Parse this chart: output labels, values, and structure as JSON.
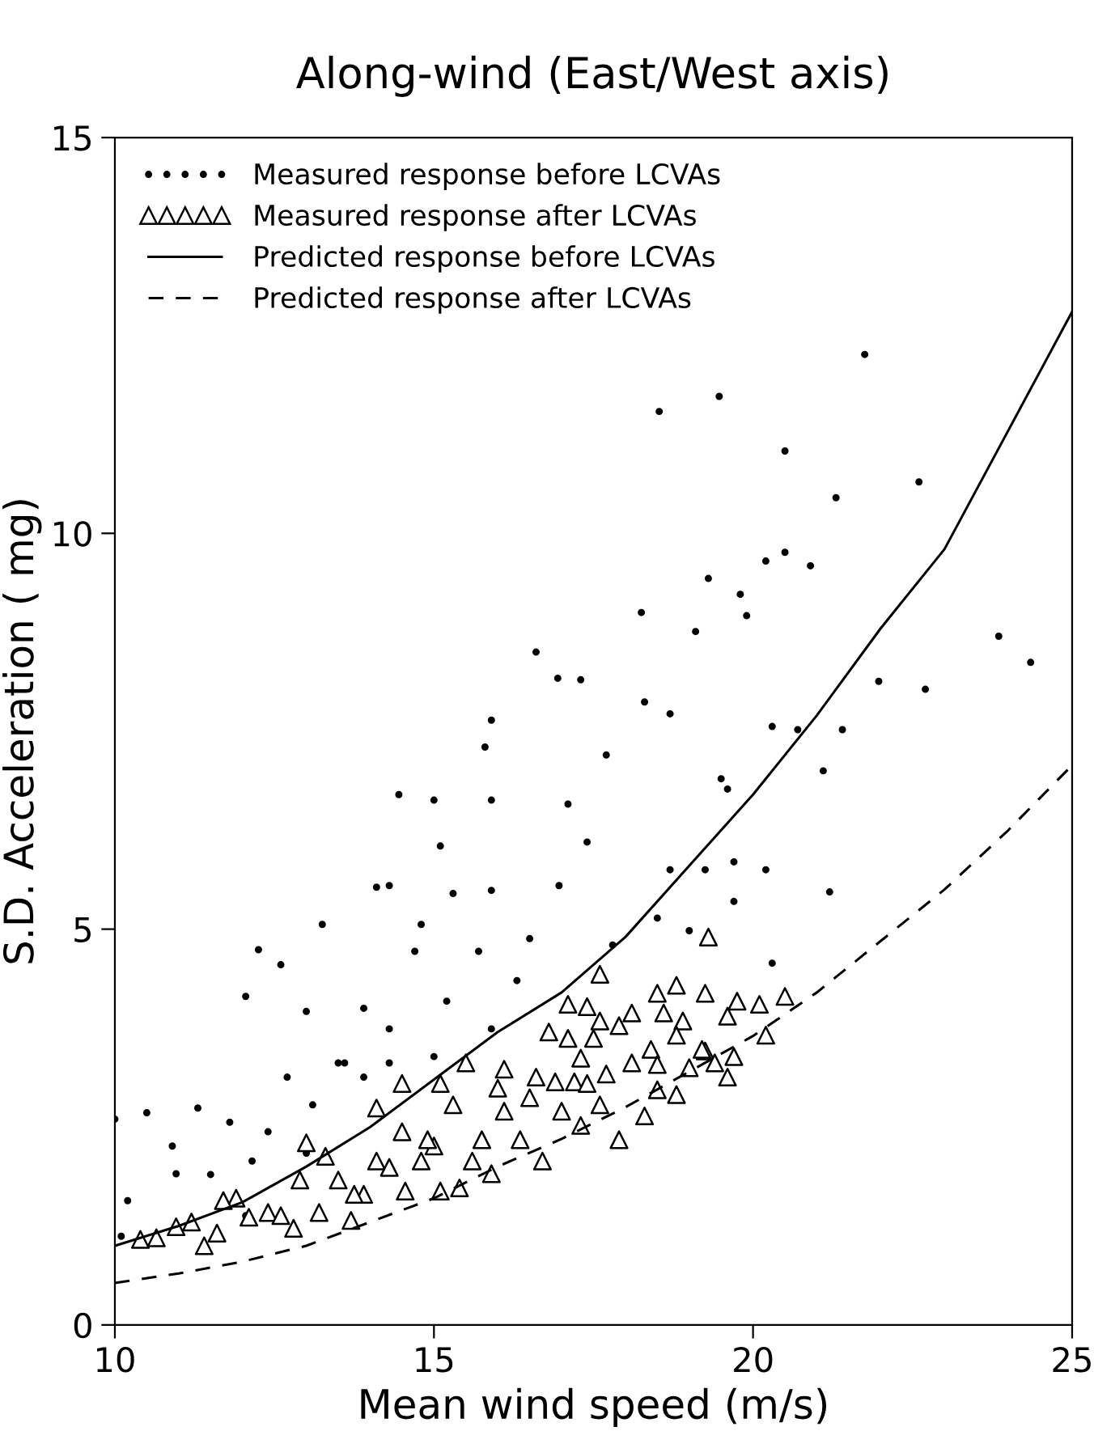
{
  "chart_data": {
    "type": "scatter",
    "title": "Along-wind (East/West axis)",
    "xlabel": "Mean wind speed (m/s)",
    "ylabel": "S.D. Acceleration ( mg)",
    "xlim": [
      10,
      25
    ],
    "ylim": [
      0,
      15
    ],
    "xticks": [
      10,
      15,
      20,
      25
    ],
    "yticks": [
      0,
      5,
      10,
      15
    ],
    "grid": false,
    "legend": "top left",
    "series": [
      {
        "name": "Measured response before LCVAs",
        "marker": "circle",
        "color": "#000000",
        "x": [
          18.53,
          19.47,
          21.75,
          20.5,
          21.3,
          22.6,
          19.3,
          20.2,
          20.5,
          20.9,
          19.8,
          18.25,
          16.6,
          23.85,
          24.35,
          22.7,
          21.97,
          16.94,
          17.3,
          15.9,
          15.8,
          14.45,
          15.0,
          15.9,
          15.1,
          14.1,
          14.3,
          13.25,
          12.25,
          12.6,
          12.05,
          13.0,
          13.9,
          19.1,
          19.9,
          18.3,
          18.7,
          17.7,
          19.5,
          20.3,
          20.7,
          21.4,
          21.1,
          19.6,
          17.1,
          17.4,
          18.7,
          21.2,
          20.2,
          19.7,
          19.7,
          16.5,
          17.8,
          18.5,
          19.0,
          19.25,
          16.96,
          15.9,
          15.3,
          14.8,
          14.7,
          15.7,
          16.3,
          15.2,
          14.3,
          15.9,
          13.6,
          15.0,
          20.3,
          10.0,
          10.5,
          10.2,
          10.9,
          11.3,
          11.8,
          11.5,
          12.4,
          12.7,
          13.1,
          13.5,
          13.9,
          14.3,
          10.96,
          12.05,
          12.15,
          13.0,
          10.1
        ],
        "values": [
          11.54,
          11.73,
          12.26,
          11.04,
          10.45,
          10.65,
          9.43,
          9.65,
          9.76,
          9.59,
          9.23,
          9.0,
          8.5,
          8.7,
          8.37,
          8.03,
          8.13,
          8.17,
          8.15,
          7.64,
          7.3,
          6.7,
          6.63,
          6.63,
          6.05,
          5.53,
          5.55,
          5.06,
          4.74,
          4.55,
          4.15,
          3.96,
          4.0,
          8.76,
          8.96,
          7.87,
          7.72,
          7.2,
          6.9,
          7.56,
          7.52,
          7.52,
          7.0,
          6.77,
          6.58,
          6.1,
          5.75,
          5.47,
          5.75,
          5.85,
          5.35,
          4.88,
          4.8,
          5.14,
          4.98,
          5.75,
          5.55,
          5.49,
          5.45,
          5.06,
          4.72,
          4.72,
          4.35,
          4.09,
          3.74,
          3.74,
          3.31,
          3.39,
          4.57,
          2.6,
          2.68,
          1.57,
          2.26,
          2.74,
          2.56,
          1.9,
          2.44,
          3.13,
          2.78,
          3.31,
          3.13,
          3.31,
          1.91,
          1.38,
          2.07,
          2.17,
          1.12
        ]
      },
      {
        "name": "Measured response after LCVAs",
        "marker": "triangle",
        "color": "#000000",
        "x": [
          19.3,
          17.6,
          18.8,
          20.5,
          20.1,
          19.75,
          19.25,
          18.5,
          17.1,
          17.4,
          18.1,
          18.6,
          18.9,
          17.9,
          19.6,
          17.6,
          16.8,
          17.1,
          17.5,
          18.8,
          20.2,
          19.25,
          18.4,
          17.3,
          19.7,
          15.5,
          16.1,
          18.1,
          18.5,
          19.0,
          19.4,
          19.6,
          16.6,
          17.7,
          14.5,
          15.1,
          16.0,
          16.9,
          17.2,
          18.8,
          10.4,
          10.65,
          11.4,
          11.2,
          11.6,
          11.9,
          12.1,
          12.4,
          12.8,
          13.2,
          13.7,
          13.9,
          13.0,
          13.3,
          12.9,
          13.5,
          14.1,
          14.55,
          15.1,
          15.4,
          15.9,
          14.5,
          14.1,
          15.0,
          15.3,
          15.75,
          16.1,
          16.35,
          16.7,
          17.0,
          17.3,
          17.6,
          17.9,
          18.3,
          18.5,
          19.2,
          17.4,
          16.5,
          12.6,
          11.7,
          10.96,
          14.8,
          15.6,
          14.9,
          14.3,
          13.75
        ],
        "values": [
          4.9,
          4.43,
          4.29,
          4.15,
          4.05,
          4.09,
          4.19,
          4.19,
          4.05,
          4.02,
          3.94,
          3.94,
          3.84,
          3.78,
          3.9,
          3.84,
          3.7,
          3.62,
          3.62,
          3.66,
          3.66,
          3.46,
          3.48,
          3.37,
          3.39,
          3.31,
          3.23,
          3.31,
          3.29,
          3.25,
          3.31,
          3.13,
          3.13,
          3.17,
          3.05,
          3.05,
          2.99,
          3.07,
          3.07,
          2.91,
          1.08,
          1.1,
          1.0,
          1.3,
          1.16,
          1.6,
          1.36,
          1.42,
          1.22,
          1.42,
          1.32,
          1.65,
          2.3,
          2.13,
          1.83,
          1.83,
          2.07,
          1.69,
          1.69,
          1.73,
          1.91,
          2.44,
          2.74,
          2.26,
          2.78,
          2.34,
          2.7,
          2.34,
          2.07,
          2.7,
          2.52,
          2.78,
          2.34,
          2.64,
          2.97,
          3.48,
          3.05,
          2.87,
          1.38,
          1.57,
          1.24,
          2.07,
          2.07,
          2.34,
          1.99,
          1.65
        ]
      },
      {
        "name": "Predicted response before LCVAs",
        "type": "line",
        "line_style": "solid",
        "marker": "none",
        "color": "#000000",
        "x": [
          10,
          11,
          12,
          13,
          14,
          15,
          16,
          17,
          18,
          19,
          20,
          21,
          22,
          23,
          24,
          25
        ],
        "values": [
          1.0,
          1.25,
          1.55,
          2.0,
          2.5,
          3.1,
          3.7,
          4.2,
          4.9,
          5.8,
          6.7,
          7.7,
          8.8,
          9.8,
          11.3,
          12.8
        ]
      },
      {
        "name": "Predicted response after LCVAs",
        "type": "line",
        "line_style": "dashed",
        "marker": "none",
        "color": "#000000",
        "x": [
          10,
          11,
          12,
          13,
          14,
          15,
          16,
          17,
          18,
          19,
          20,
          21,
          22,
          23,
          24,
          25
        ],
        "values": [
          0.53,
          0.65,
          0.8,
          1.0,
          1.3,
          1.6,
          2.0,
          2.35,
          2.75,
          3.2,
          3.65,
          4.2,
          4.85,
          5.5,
          6.25,
          7.07
        ]
      }
    ]
  }
}
